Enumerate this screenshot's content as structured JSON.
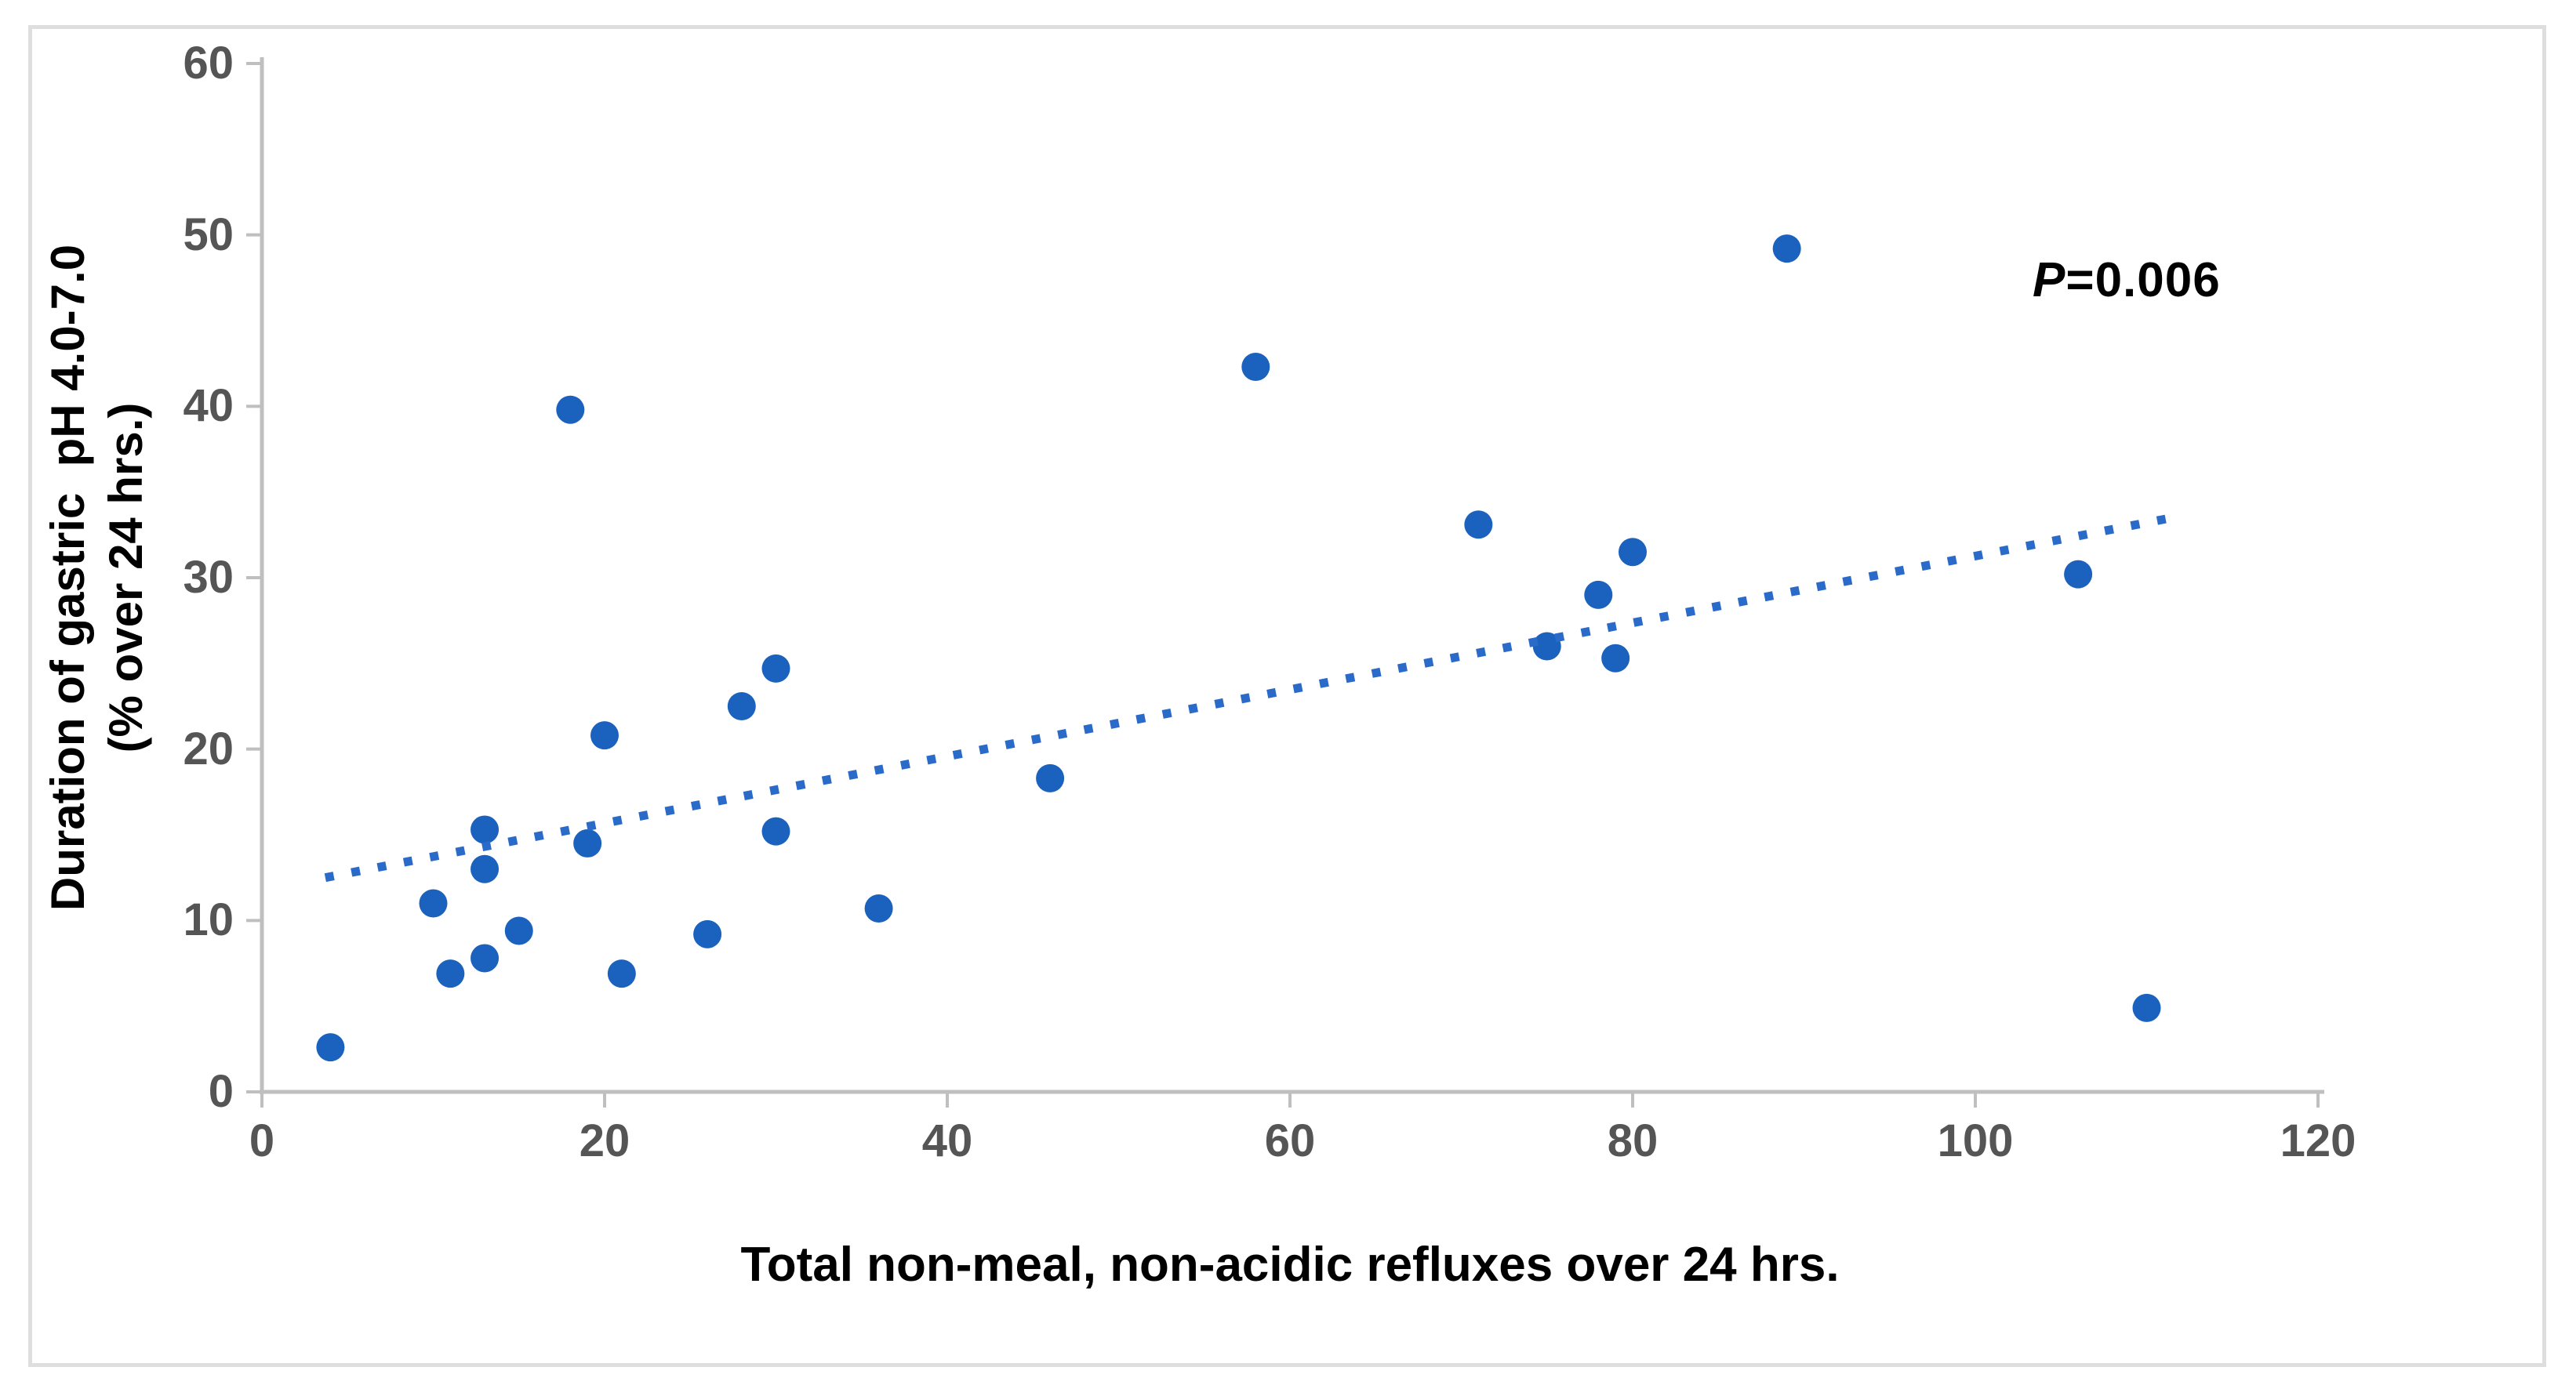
{
  "chart_data": {
    "type": "scatter",
    "title": "",
    "xlabel": "Total non-meal, non-acidic refluxes over 24 hrs.",
    "ylabel_line1": "Duration of gastric  pH 4.0-7.0",
    "ylabel_line2": "(% over 24 hrs.)",
    "annotation": {
      "p": "P",
      "value": "=0.006"
    },
    "xlim": [
      0,
      120
    ],
    "ylim": [
      0,
      60
    ],
    "x_ticks": [
      0,
      20,
      40,
      60,
      80,
      100,
      120
    ],
    "y_ticks": [
      0,
      10,
      20,
      30,
      40,
      50,
      60
    ],
    "grid": false,
    "legend": false,
    "points": [
      [
        4,
        2.6
      ],
      [
        10,
        11
      ],
      [
        11,
        6.9
      ],
      [
        13,
        7.8
      ],
      [
        13,
        13
      ],
      [
        13,
        15.3
      ],
      [
        15,
        9.4
      ],
      [
        18,
        39.8
      ],
      [
        19,
        14.5
      ],
      [
        20,
        20.8
      ],
      [
        21,
        6.9
      ],
      [
        26,
        9.2
      ],
      [
        28,
        22.5
      ],
      [
        30,
        24.7
      ],
      [
        30,
        15.2
      ],
      [
        36,
        10.7
      ],
      [
        46,
        18.3
      ],
      [
        58,
        42.3
      ],
      [
        71,
        33.1
      ],
      [
        75,
        26
      ],
      [
        78,
        29
      ],
      [
        79,
        25.3
      ],
      [
        80,
        31.5
      ],
      [
        89,
        49.2
      ],
      [
        106,
        30.2
      ],
      [
        110,
        4.9
      ]
    ],
    "trendline": {
      "x1": 3.7,
      "y1": 12.5,
      "x2": 112,
      "y2": 33.6,
      "style": "dotted"
    },
    "colors": {
      "point": "#1B62BE",
      "trend": "#2A6AC8",
      "axis": "#BFBFBF",
      "tick_label": "#555555",
      "title": "#000000",
      "frame_border": "#DEDEDE"
    }
  }
}
